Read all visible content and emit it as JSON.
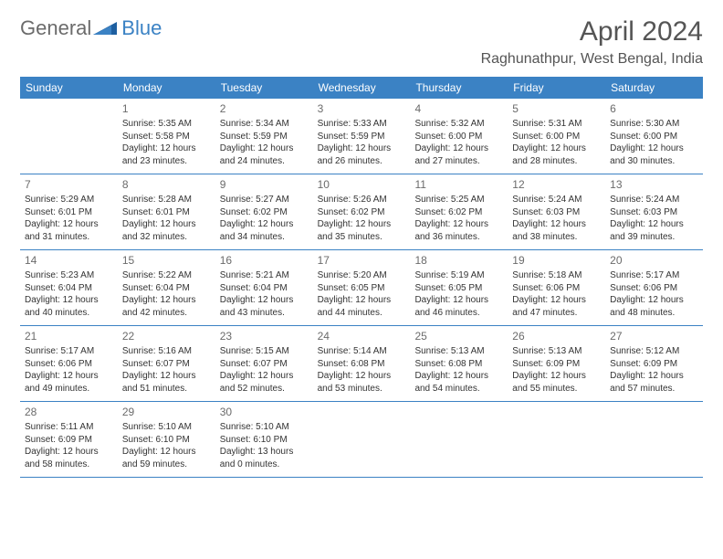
{
  "logo": {
    "part1": "General",
    "part2": "Blue"
  },
  "title": "April 2024",
  "location": "Raghunathpur, West Bengal, India",
  "colors": {
    "header_bg": "#3b82c4",
    "header_text": "#ffffff",
    "page_bg": "#ffffff",
    "text": "#333333",
    "muted": "#6b6b6b",
    "rule": "#3b82c4"
  },
  "daynames": [
    "Sunday",
    "Monday",
    "Tuesday",
    "Wednesday",
    "Thursday",
    "Friday",
    "Saturday"
  ],
  "weeks": [
    [
      {
        "n": "",
        "s": "",
        "t": "",
        "d": ""
      },
      {
        "n": "1",
        "s": "Sunrise: 5:35 AM",
        "t": "Sunset: 5:58 PM",
        "d": "Daylight: 12 hours and 23 minutes."
      },
      {
        "n": "2",
        "s": "Sunrise: 5:34 AM",
        "t": "Sunset: 5:59 PM",
        "d": "Daylight: 12 hours and 24 minutes."
      },
      {
        "n": "3",
        "s": "Sunrise: 5:33 AM",
        "t": "Sunset: 5:59 PM",
        "d": "Daylight: 12 hours and 26 minutes."
      },
      {
        "n": "4",
        "s": "Sunrise: 5:32 AM",
        "t": "Sunset: 6:00 PM",
        "d": "Daylight: 12 hours and 27 minutes."
      },
      {
        "n": "5",
        "s": "Sunrise: 5:31 AM",
        "t": "Sunset: 6:00 PM",
        "d": "Daylight: 12 hours and 28 minutes."
      },
      {
        "n": "6",
        "s": "Sunrise: 5:30 AM",
        "t": "Sunset: 6:00 PM",
        "d": "Daylight: 12 hours and 30 minutes."
      }
    ],
    [
      {
        "n": "7",
        "s": "Sunrise: 5:29 AM",
        "t": "Sunset: 6:01 PM",
        "d": "Daylight: 12 hours and 31 minutes."
      },
      {
        "n": "8",
        "s": "Sunrise: 5:28 AM",
        "t": "Sunset: 6:01 PM",
        "d": "Daylight: 12 hours and 32 minutes."
      },
      {
        "n": "9",
        "s": "Sunrise: 5:27 AM",
        "t": "Sunset: 6:02 PM",
        "d": "Daylight: 12 hours and 34 minutes."
      },
      {
        "n": "10",
        "s": "Sunrise: 5:26 AM",
        "t": "Sunset: 6:02 PM",
        "d": "Daylight: 12 hours and 35 minutes."
      },
      {
        "n": "11",
        "s": "Sunrise: 5:25 AM",
        "t": "Sunset: 6:02 PM",
        "d": "Daylight: 12 hours and 36 minutes."
      },
      {
        "n": "12",
        "s": "Sunrise: 5:24 AM",
        "t": "Sunset: 6:03 PM",
        "d": "Daylight: 12 hours and 38 minutes."
      },
      {
        "n": "13",
        "s": "Sunrise: 5:24 AM",
        "t": "Sunset: 6:03 PM",
        "d": "Daylight: 12 hours and 39 minutes."
      }
    ],
    [
      {
        "n": "14",
        "s": "Sunrise: 5:23 AM",
        "t": "Sunset: 6:04 PM",
        "d": "Daylight: 12 hours and 40 minutes."
      },
      {
        "n": "15",
        "s": "Sunrise: 5:22 AM",
        "t": "Sunset: 6:04 PM",
        "d": "Daylight: 12 hours and 42 minutes."
      },
      {
        "n": "16",
        "s": "Sunrise: 5:21 AM",
        "t": "Sunset: 6:04 PM",
        "d": "Daylight: 12 hours and 43 minutes."
      },
      {
        "n": "17",
        "s": "Sunrise: 5:20 AM",
        "t": "Sunset: 6:05 PM",
        "d": "Daylight: 12 hours and 44 minutes."
      },
      {
        "n": "18",
        "s": "Sunrise: 5:19 AM",
        "t": "Sunset: 6:05 PM",
        "d": "Daylight: 12 hours and 46 minutes."
      },
      {
        "n": "19",
        "s": "Sunrise: 5:18 AM",
        "t": "Sunset: 6:06 PM",
        "d": "Daylight: 12 hours and 47 minutes."
      },
      {
        "n": "20",
        "s": "Sunrise: 5:17 AM",
        "t": "Sunset: 6:06 PM",
        "d": "Daylight: 12 hours and 48 minutes."
      }
    ],
    [
      {
        "n": "21",
        "s": "Sunrise: 5:17 AM",
        "t": "Sunset: 6:06 PM",
        "d": "Daylight: 12 hours and 49 minutes."
      },
      {
        "n": "22",
        "s": "Sunrise: 5:16 AM",
        "t": "Sunset: 6:07 PM",
        "d": "Daylight: 12 hours and 51 minutes."
      },
      {
        "n": "23",
        "s": "Sunrise: 5:15 AM",
        "t": "Sunset: 6:07 PM",
        "d": "Daylight: 12 hours and 52 minutes."
      },
      {
        "n": "24",
        "s": "Sunrise: 5:14 AM",
        "t": "Sunset: 6:08 PM",
        "d": "Daylight: 12 hours and 53 minutes."
      },
      {
        "n": "25",
        "s": "Sunrise: 5:13 AM",
        "t": "Sunset: 6:08 PM",
        "d": "Daylight: 12 hours and 54 minutes."
      },
      {
        "n": "26",
        "s": "Sunrise: 5:13 AM",
        "t": "Sunset: 6:09 PM",
        "d": "Daylight: 12 hours and 55 minutes."
      },
      {
        "n": "27",
        "s": "Sunrise: 5:12 AM",
        "t": "Sunset: 6:09 PM",
        "d": "Daylight: 12 hours and 57 minutes."
      }
    ],
    [
      {
        "n": "28",
        "s": "Sunrise: 5:11 AM",
        "t": "Sunset: 6:09 PM",
        "d": "Daylight: 12 hours and 58 minutes."
      },
      {
        "n": "29",
        "s": "Sunrise: 5:10 AM",
        "t": "Sunset: 6:10 PM",
        "d": "Daylight: 12 hours and 59 minutes."
      },
      {
        "n": "30",
        "s": "Sunrise: 5:10 AM",
        "t": "Sunset: 6:10 PM",
        "d": "Daylight: 13 hours and 0 minutes."
      },
      {
        "n": "",
        "s": "",
        "t": "",
        "d": ""
      },
      {
        "n": "",
        "s": "",
        "t": "",
        "d": ""
      },
      {
        "n": "",
        "s": "",
        "t": "",
        "d": ""
      },
      {
        "n": "",
        "s": "",
        "t": "",
        "d": ""
      }
    ]
  ]
}
